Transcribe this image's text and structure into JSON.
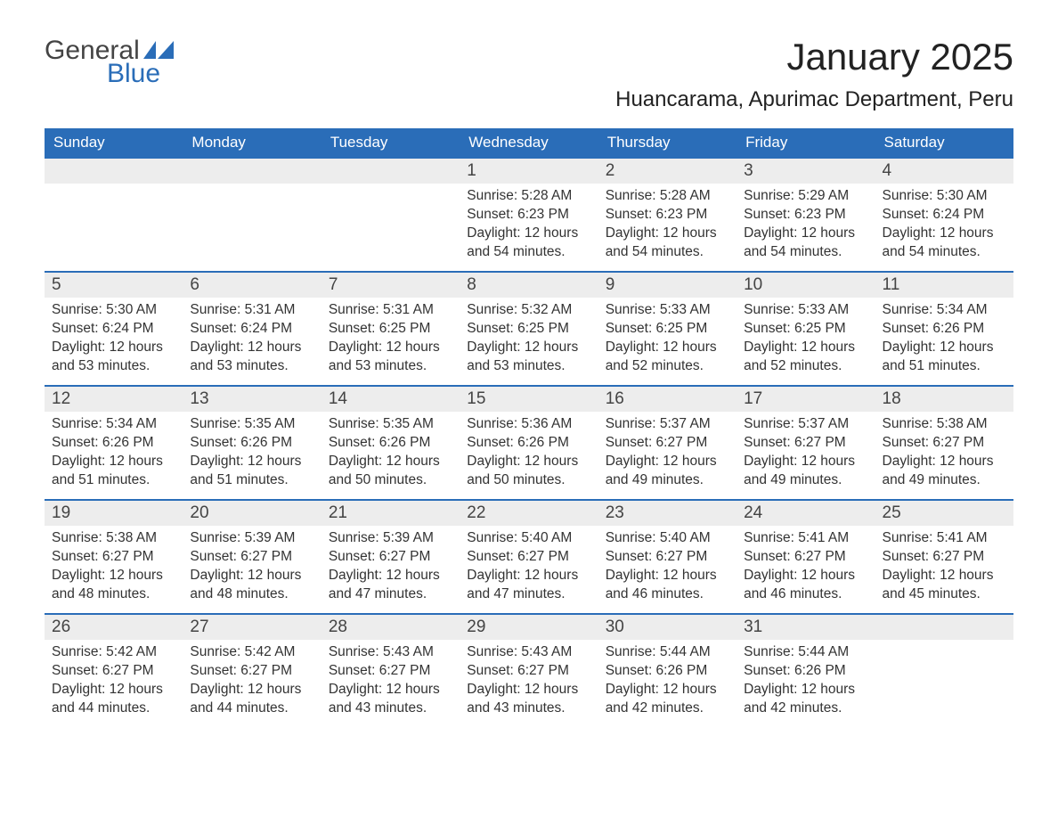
{
  "logo": {
    "word1": "General",
    "word2": "Blue"
  },
  "title": "January 2025",
  "location": "Huancarama, Apurimac Department, Peru",
  "colors": {
    "header_bg": "#2a6db8",
    "header_text": "#ffffff",
    "daynum_bg": "#ededed",
    "accent_line": "#2a6db8",
    "text": "#333333",
    "logo_blue": "#2a6db8"
  },
  "day_names": [
    "Sunday",
    "Monday",
    "Tuesday",
    "Wednesday",
    "Thursday",
    "Friday",
    "Saturday"
  ],
  "labels": {
    "sunrise": "Sunrise: ",
    "sunset": "Sunset: ",
    "daylight": "Daylight: "
  },
  "weeks": [
    [
      null,
      null,
      null,
      {
        "n": "1",
        "sunrise": "5:28 AM",
        "sunset": "6:23 PM",
        "daylight": "12 hours and 54 minutes."
      },
      {
        "n": "2",
        "sunrise": "5:28 AM",
        "sunset": "6:23 PM",
        "daylight": "12 hours and 54 minutes."
      },
      {
        "n": "3",
        "sunrise": "5:29 AM",
        "sunset": "6:23 PM",
        "daylight": "12 hours and 54 minutes."
      },
      {
        "n": "4",
        "sunrise": "5:30 AM",
        "sunset": "6:24 PM",
        "daylight": "12 hours and 54 minutes."
      }
    ],
    [
      {
        "n": "5",
        "sunrise": "5:30 AM",
        "sunset": "6:24 PM",
        "daylight": "12 hours and 53 minutes."
      },
      {
        "n": "6",
        "sunrise": "5:31 AM",
        "sunset": "6:24 PM",
        "daylight": "12 hours and 53 minutes."
      },
      {
        "n": "7",
        "sunrise": "5:31 AM",
        "sunset": "6:25 PM",
        "daylight": "12 hours and 53 minutes."
      },
      {
        "n": "8",
        "sunrise": "5:32 AM",
        "sunset": "6:25 PM",
        "daylight": "12 hours and 53 minutes."
      },
      {
        "n": "9",
        "sunrise": "5:33 AM",
        "sunset": "6:25 PM",
        "daylight": "12 hours and 52 minutes."
      },
      {
        "n": "10",
        "sunrise": "5:33 AM",
        "sunset": "6:25 PM",
        "daylight": "12 hours and 52 minutes."
      },
      {
        "n": "11",
        "sunrise": "5:34 AM",
        "sunset": "6:26 PM",
        "daylight": "12 hours and 51 minutes."
      }
    ],
    [
      {
        "n": "12",
        "sunrise": "5:34 AM",
        "sunset": "6:26 PM",
        "daylight": "12 hours and 51 minutes."
      },
      {
        "n": "13",
        "sunrise": "5:35 AM",
        "sunset": "6:26 PM",
        "daylight": "12 hours and 51 minutes."
      },
      {
        "n": "14",
        "sunrise": "5:35 AM",
        "sunset": "6:26 PM",
        "daylight": "12 hours and 50 minutes."
      },
      {
        "n": "15",
        "sunrise": "5:36 AM",
        "sunset": "6:26 PM",
        "daylight": "12 hours and 50 minutes."
      },
      {
        "n": "16",
        "sunrise": "5:37 AM",
        "sunset": "6:27 PM",
        "daylight": "12 hours and 49 minutes."
      },
      {
        "n": "17",
        "sunrise": "5:37 AM",
        "sunset": "6:27 PM",
        "daylight": "12 hours and 49 minutes."
      },
      {
        "n": "18",
        "sunrise": "5:38 AM",
        "sunset": "6:27 PM",
        "daylight": "12 hours and 49 minutes."
      }
    ],
    [
      {
        "n": "19",
        "sunrise": "5:38 AM",
        "sunset": "6:27 PM",
        "daylight": "12 hours and 48 minutes."
      },
      {
        "n": "20",
        "sunrise": "5:39 AM",
        "sunset": "6:27 PM",
        "daylight": "12 hours and 48 minutes."
      },
      {
        "n": "21",
        "sunrise": "5:39 AM",
        "sunset": "6:27 PM",
        "daylight": "12 hours and 47 minutes."
      },
      {
        "n": "22",
        "sunrise": "5:40 AM",
        "sunset": "6:27 PM",
        "daylight": "12 hours and 47 minutes."
      },
      {
        "n": "23",
        "sunrise": "5:40 AM",
        "sunset": "6:27 PM",
        "daylight": "12 hours and 46 minutes."
      },
      {
        "n": "24",
        "sunrise": "5:41 AM",
        "sunset": "6:27 PM",
        "daylight": "12 hours and 46 minutes."
      },
      {
        "n": "25",
        "sunrise": "5:41 AM",
        "sunset": "6:27 PM",
        "daylight": "12 hours and 45 minutes."
      }
    ],
    [
      {
        "n": "26",
        "sunrise": "5:42 AM",
        "sunset": "6:27 PM",
        "daylight": "12 hours and 44 minutes."
      },
      {
        "n": "27",
        "sunrise": "5:42 AM",
        "sunset": "6:27 PM",
        "daylight": "12 hours and 44 minutes."
      },
      {
        "n": "28",
        "sunrise": "5:43 AM",
        "sunset": "6:27 PM",
        "daylight": "12 hours and 43 minutes."
      },
      {
        "n": "29",
        "sunrise": "5:43 AM",
        "sunset": "6:27 PM",
        "daylight": "12 hours and 43 minutes."
      },
      {
        "n": "30",
        "sunrise": "5:44 AM",
        "sunset": "6:26 PM",
        "daylight": "12 hours and 42 minutes."
      },
      {
        "n": "31",
        "sunrise": "5:44 AM",
        "sunset": "6:26 PM",
        "daylight": "12 hours and 42 minutes."
      },
      null
    ]
  ]
}
